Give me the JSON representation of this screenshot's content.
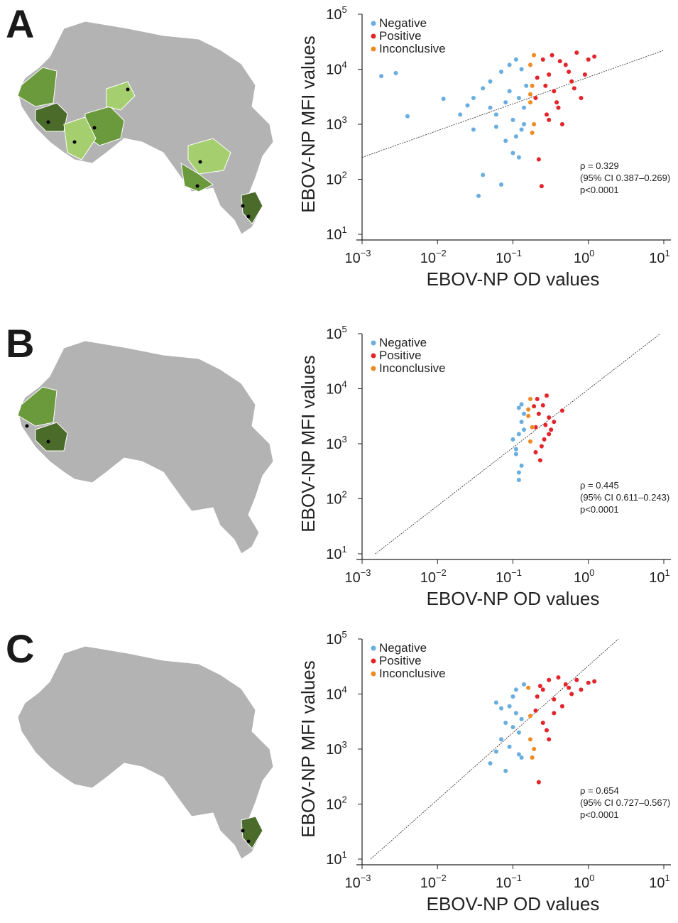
{
  "legend": {
    "negative": "Negative",
    "positive": "Positive",
    "inconclusive": "Inconclusive"
  },
  "colors": {
    "negative": "#6aaee0",
    "positive": "#e3242b",
    "inconclusive": "#ef8a22",
    "map_base": "#b3b3b3",
    "map_dark": "#4a6b2a",
    "map_mid": "#6a9a3c",
    "map_light": "#a5cf6e"
  },
  "axis": {
    "xlabel": "EBOV-NP OD values",
    "ylabel": "EBOV-NP MFI values",
    "xticks": [
      "10",
      "10",
      "10",
      "10",
      "10"
    ],
    "xexp": [
      "−3",
      "−2",
      "−1",
      "0",
      "1"
    ],
    "yticks": [
      "10",
      "10",
      "10",
      "10",
      "10"
    ],
    "yexp": [
      "1",
      "2",
      "3",
      "4",
      "5"
    ]
  },
  "chart_data": [
    {
      "panel": "A",
      "type": "scatter",
      "xscale": "log",
      "yscale": "log",
      "xlim": [
        0.001,
        10
      ],
      "ylim": [
        10,
        100000
      ],
      "legend_position": "top-left",
      "regression_line": {
        "x": [
          0.001,
          10
        ],
        "y": [
          250,
          22000
        ]
      },
      "stats": [
        "ρ = 0.329",
        "(95% CI 0.387–0.269)",
        "p<0.0001"
      ],
      "series": [
        {
          "name": "Negative",
          "points": [
            [
              0.0018,
              7500
            ],
            [
              0.0028,
              8500
            ],
            [
              0.004,
              1400
            ],
            [
              0.012,
              2900
            ],
            [
              0.02,
              1500
            ],
            [
              0.03,
              3000
            ],
            [
              0.035,
              50
            ],
            [
              0.04,
              120
            ],
            [
              0.05,
              2000
            ],
            [
              0.06,
              1500
            ],
            [
              0.07,
              80
            ],
            [
              0.08,
              2500
            ],
            [
              0.09,
              4000
            ],
            [
              0.1,
              1200
            ],
            [
              0.11,
              600
            ],
            [
              0.12,
              3000
            ],
            [
              0.13,
              800
            ],
            [
              0.14,
              2000
            ],
            [
              0.05,
              6000
            ],
            [
              0.07,
              9000
            ],
            [
              0.09,
              12000
            ],
            [
              0.11,
              15000
            ],
            [
              0.06,
              900
            ],
            [
              0.08,
              500
            ],
            [
              0.1,
              300
            ],
            [
              0.12,
              250
            ],
            [
              0.15,
              5000
            ],
            [
              0.04,
              4500
            ],
            [
              0.03,
              800
            ],
            [
              0.025,
              2200
            ],
            [
              0.13,
              10000
            ],
            [
              0.14,
              1000
            ]
          ]
        },
        {
          "name": "Positive",
          "points": [
            [
              0.2,
              3000
            ],
            [
              0.25,
              15000
            ],
            [
              0.3,
              8000
            ],
            [
              0.35,
              4000
            ],
            [
              0.4,
              2000
            ],
            [
              0.5,
              12000
            ],
            [
              0.6,
              6000
            ],
            [
              0.8,
              3000
            ],
            [
              1.0,
              15000
            ],
            [
              1.2,
              17000
            ],
            [
              0.22,
              230
            ],
            [
              0.24,
              75
            ],
            [
              0.28,
              1500
            ],
            [
              0.45,
              1000
            ],
            [
              0.7,
              20000
            ],
            [
              0.55,
              9000
            ],
            [
              0.33,
              18000
            ],
            [
              0.27,
              5000
            ],
            [
              0.21,
              7000
            ],
            [
              0.38,
              2500
            ],
            [
              0.42,
              14000
            ],
            [
              0.65,
              4500
            ],
            [
              0.9,
              8000
            ],
            [
              0.3,
              1200
            ]
          ]
        },
        {
          "name": "Inconclusive",
          "points": [
            [
              0.17,
              2500
            ],
            [
              0.18,
              5000
            ],
            [
              0.19,
              1000
            ],
            [
              0.17,
              12000
            ],
            [
              0.18,
              700
            ],
            [
              0.19,
              18000
            ],
            [
              0.17,
              3500
            ]
          ]
        }
      ]
    },
    {
      "panel": "B",
      "type": "scatter",
      "xscale": "log",
      "yscale": "log",
      "xlim": [
        0.001,
        10
      ],
      "ylim": [
        10,
        100000
      ],
      "legend_position": "top-left",
      "regression_line": {
        "x": [
          0.0015,
          9
        ],
        "y": [
          10,
          100000
        ]
      },
      "stats": [
        "ρ = 0.445",
        "(95% CI 0.611–0.243)",
        "p<0.0001"
      ],
      "series": [
        {
          "name": "Negative",
          "points": [
            [
              0.12,
              220
            ],
            [
              0.13,
              400
            ],
            [
              0.11,
              800
            ],
            [
              0.12,
              1500
            ],
            [
              0.13,
              2500
            ],
            [
              0.14,
              3500
            ],
            [
              0.1,
              1200
            ],
            [
              0.12,
              4500
            ],
            [
              0.13,
              5200
            ],
            [
              0.11,
              650
            ],
            [
              0.14,
              1800
            ],
            [
              0.12,
              300
            ]
          ]
        },
        {
          "name": "Positive",
          "points": [
            [
              0.2,
              2000
            ],
            [
              0.22,
              3500
            ],
            [
              0.25,
              5000
            ],
            [
              0.28,
              7500
            ],
            [
              0.3,
              1500
            ],
            [
              0.35,
              2500
            ],
            [
              0.45,
              4000
            ],
            [
              0.2,
              700
            ],
            [
              0.23,
              500
            ],
            [
              0.26,
              1200
            ],
            [
              0.21,
              6500
            ],
            [
              0.3,
              3000
            ],
            [
              0.24,
              900
            ],
            [
              0.32,
              1800
            ],
            [
              0.27,
              2200
            ],
            [
              0.19,
              4800
            ]
          ]
        },
        {
          "name": "Inconclusive",
          "points": [
            [
              0.16,
              3200
            ],
            [
              0.17,
              6500
            ],
            [
              0.18,
              2000
            ],
            [
              0.17,
              1100
            ],
            [
              0.16,
              4200
            ]
          ]
        }
      ]
    },
    {
      "panel": "C",
      "type": "scatter",
      "xscale": "log",
      "yscale": "log",
      "xlim": [
        0.001,
        10
      ],
      "ylim": [
        10,
        100000
      ],
      "legend_position": "top-left",
      "regression_line": {
        "x": [
          0.0013,
          2.5
        ],
        "y": [
          10,
          100000
        ]
      },
      "stats": [
        "ρ = 0.654",
        "(95% CI 0.727–0.567)",
        "p<0.0001"
      ],
      "series": [
        {
          "name": "Negative",
          "points": [
            [
              0.05,
              550
            ],
            [
              0.06,
              900
            ],
            [
              0.07,
              1500
            ],
            [
              0.08,
              3000
            ],
            [
              0.09,
              6000
            ],
            [
              0.1,
              9000
            ],
            [
              0.11,
              12000
            ],
            [
              0.12,
              2000
            ],
            [
              0.13,
              700
            ],
            [
              0.14,
              15000
            ],
            [
              0.08,
              400
            ],
            [
              0.09,
              1100
            ],
            [
              0.1,
              2500
            ],
            [
              0.11,
              4500
            ],
            [
              0.12,
              800
            ],
            [
              0.13,
              3500
            ],
            [
              0.07,
              5500
            ],
            [
              0.06,
              7000
            ]
          ]
        },
        {
          "name": "Positive",
          "points": [
            [
              0.2,
              5000
            ],
            [
              0.25,
              12000
            ],
            [
              0.3,
              18000
            ],
            [
              0.35,
              8000
            ],
            [
              0.4,
              20000
            ],
            [
              0.5,
              15000
            ],
            [
              0.6,
              10000
            ],
            [
              0.8,
              12000
            ],
            [
              1.0,
              16000
            ],
            [
              1.2,
              17000
            ],
            [
              0.22,
              250
            ],
            [
              0.3,
              1500
            ],
            [
              0.25,
              3000
            ],
            [
              0.45,
              6000
            ],
            [
              0.21,
              9000
            ],
            [
              0.28,
              2200
            ],
            [
              0.7,
              18000
            ],
            [
              0.35,
              4500
            ],
            [
              0.55,
              13000
            ],
            [
              0.23,
              14000
            ]
          ]
        },
        {
          "name": "Inconclusive",
          "points": [
            [
              0.17,
              1500
            ],
            [
              0.18,
              700
            ],
            [
              0.19,
              1000
            ],
            [
              0.17,
              4000
            ],
            [
              0.16,
              13000
            ]
          ]
        }
      ]
    }
  ]
}
